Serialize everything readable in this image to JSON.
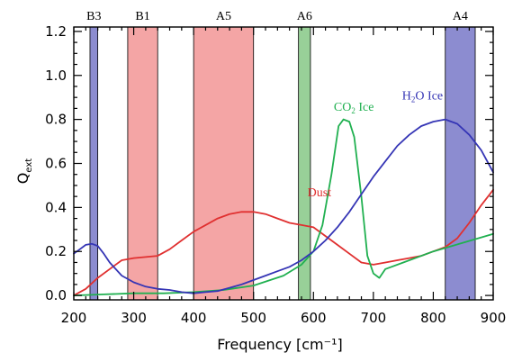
{
  "chart_data": {
    "type": "line",
    "title": "",
    "xlabel": "Frequency [cm⁻¹]",
    "ylabel": "Q",
    "ylabel_sub": "ext",
    "xlim": [
      200,
      900
    ],
    "ylim": [
      -0.02,
      1.22
    ],
    "x_ticks": [
      200,
      300,
      400,
      500,
      600,
      700,
      800,
      900
    ],
    "y_ticks": [
      0.0,
      0.2,
      0.4,
      0.6,
      0.8,
      1.0,
      1.2
    ],
    "y_tick_labels": [
      "0.0",
      "0.2",
      "0.4",
      "0.6",
      "0.8",
      "1.0",
      "1.2"
    ],
    "x_minor_step": 20,
    "y_minor_step": 0.05,
    "grid": false,
    "bands": [
      {
        "label": "B3",
        "x0": 227,
        "x1": 240,
        "color": "#8c8cd0"
      },
      {
        "label": "B1",
        "x0": 290,
        "x1": 340,
        "color": "#f4a5a5"
      },
      {
        "label": "A5",
        "x0": 400,
        "x1": 500,
        "color": "#f4a5a5"
      },
      {
        "label": "A6",
        "x0": 575,
        "x1": 595,
        "color": "#98d098"
      },
      {
        "label": "A4",
        "x0": 820,
        "x1": 870,
        "color": "#8c8cd0"
      }
    ],
    "series": [
      {
        "name": "Dust",
        "label": "Dust",
        "label_at": [
          590,
          0.45
        ],
        "color": "#e03030",
        "x": [
          200,
          220,
          240,
          260,
          280,
          300,
          320,
          340,
          360,
          380,
          400,
          420,
          440,
          460,
          480,
          500,
          520,
          540,
          560,
          580,
          600,
          620,
          640,
          660,
          680,
          700,
          720,
          740,
          760,
          780,
          800,
          820,
          840,
          860,
          880,
          900
        ],
        "y": [
          0.0,
          0.03,
          0.08,
          0.12,
          0.16,
          0.17,
          0.175,
          0.18,
          0.21,
          0.25,
          0.29,
          0.32,
          0.35,
          0.37,
          0.38,
          0.38,
          0.37,
          0.35,
          0.33,
          0.32,
          0.31,
          0.27,
          0.23,
          0.19,
          0.15,
          0.14,
          0.15,
          0.16,
          0.17,
          0.18,
          0.2,
          0.22,
          0.26,
          0.33,
          0.41,
          0.48
        ]
      },
      {
        "name": "CO2 Ice",
        "label": "CO",
        "label_sub": "2",
        "label_suffix": " Ice",
        "label_at": [
          634,
          0.84
        ],
        "color": "#20b050",
        "x": [
          200,
          250,
          300,
          350,
          400,
          450,
          500,
          550,
          580,
          600,
          615,
          630,
          642,
          650,
          660,
          668,
          680,
          690,
          700,
          710,
          720,
          750,
          800,
          850,
          900
        ],
        "y": [
          0.0,
          0.005,
          0.01,
          0.01,
          0.015,
          0.025,
          0.045,
          0.09,
          0.14,
          0.2,
          0.32,
          0.55,
          0.77,
          0.8,
          0.79,
          0.72,
          0.45,
          0.18,
          0.1,
          0.08,
          0.12,
          0.15,
          0.2,
          0.24,
          0.28
        ]
      },
      {
        "name": "H2O Ice",
        "label": "H",
        "label_sub": "2",
        "label_suffix": "O Ice",
        "label_at": [
          748,
          0.89
        ],
        "color": "#3535b5",
        "x": [
          200,
          210,
          220,
          230,
          240,
          250,
          260,
          280,
          300,
          320,
          340,
          360,
          380,
          400,
          420,
          440,
          460,
          480,
          500,
          520,
          540,
          560,
          580,
          600,
          620,
          640,
          660,
          680,
          700,
          720,
          740,
          760,
          780,
          800,
          820,
          840,
          860,
          880,
          900
        ],
        "y": [
          0.19,
          0.21,
          0.23,
          0.235,
          0.225,
          0.19,
          0.15,
          0.09,
          0.06,
          0.04,
          0.03,
          0.025,
          0.015,
          0.01,
          0.015,
          0.02,
          0.035,
          0.05,
          0.07,
          0.09,
          0.11,
          0.13,
          0.16,
          0.2,
          0.25,
          0.31,
          0.38,
          0.46,
          0.54,
          0.61,
          0.68,
          0.73,
          0.77,
          0.79,
          0.8,
          0.78,
          0.73,
          0.66,
          0.56
        ]
      }
    ]
  }
}
